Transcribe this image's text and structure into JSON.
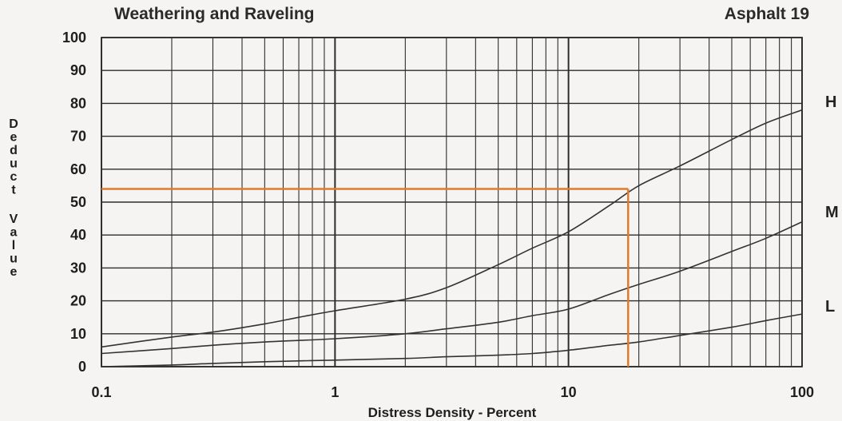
{
  "chart_data": {
    "type": "line",
    "title": "Weathering and Raveling",
    "subtitle": "Asphalt 19",
    "xlabel": "Distress Density - Percent",
    "ylabel": "Deduct Value",
    "x_scale": "log",
    "xlim": [
      0.1,
      100
    ],
    "ylim": [
      0,
      100
    ],
    "x_ticks": [
      "0.1",
      "1",
      "10",
      "100"
    ],
    "y_ticks": [
      "0",
      "10",
      "20",
      "30",
      "40",
      "50",
      "60",
      "70",
      "80",
      "90",
      "100"
    ],
    "grid": true,
    "series": [
      {
        "name": "H",
        "x": [
          0.1,
          0.2,
          0.3,
          0.5,
          0.7,
          1,
          2,
          3,
          5,
          7,
          10,
          15,
          20,
          30,
          50,
          70,
          100
        ],
        "y": [
          6,
          9,
          10.5,
          13,
          15,
          17,
          20.5,
          24,
          31,
          36,
          41,
          49,
          55,
          61,
          69,
          74,
          78
        ]
      },
      {
        "name": "M",
        "x": [
          0.1,
          0.2,
          0.3,
          0.5,
          1,
          2,
          3,
          5,
          7,
          10,
          15,
          20,
          30,
          50,
          70,
          100
        ],
        "y": [
          4,
          5.5,
          6.5,
          7.5,
          8.5,
          10,
          11.5,
          13.5,
          15.5,
          17.5,
          22,
          25,
          29,
          35,
          39,
          44
        ]
      },
      {
        "name": "L",
        "x": [
          0.1,
          0.2,
          0.3,
          0.5,
          1,
          2,
          3,
          5,
          7,
          10,
          15,
          20,
          30,
          50,
          70,
          100
        ],
        "y": [
          0,
          0.5,
          1,
          1.5,
          2,
          2.5,
          3,
          3.5,
          4,
          5,
          6.5,
          7.5,
          9.5,
          12,
          14,
          16
        ]
      }
    ],
    "annotation": {
      "x": 18,
      "y": 54,
      "color": "#e07b2c"
    },
    "colors": {
      "grid": "#2c2c2c",
      "curve": "#333333",
      "background": "#f6f4f2"
    }
  }
}
